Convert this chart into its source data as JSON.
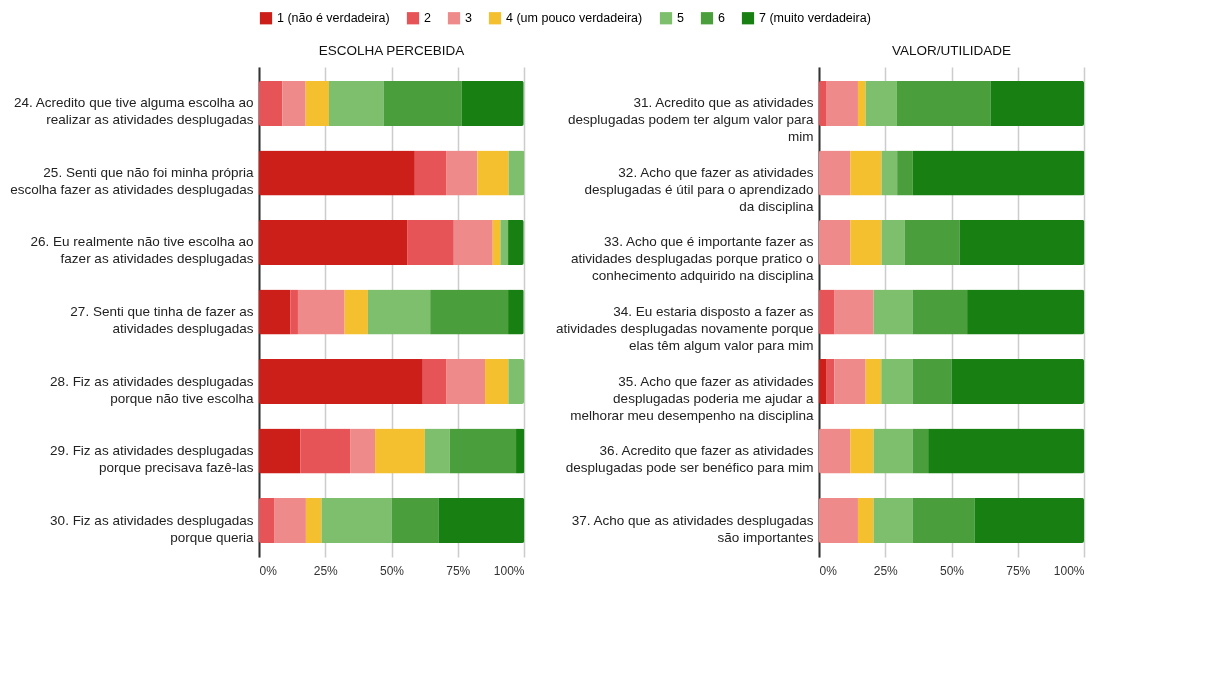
{
  "chart_data": [
    {
      "type": "bar",
      "orientation": "horizontal",
      "stacked": true,
      "title": "ESCOLHA PERCEBIDA",
      "legend": "top",
      "grid": "x",
      "categories": [
        "24. Acredito que tive alguma escolha ao realizar as atividades desplugadas",
        "25. Senti que não foi minha própria escolha fazer as atividades desplugadas",
        "26. Eu realmente não tive escolha ao fazer as atividades desplugadas",
        "27. Senti que tinha de fazer as atividades desplugadas",
        "28. Fiz as atividades desplugadas porque não tive escolha",
        "29. Fiz as atividades desplugadas porque precisava fazê-las",
        "30. Fiz as atividades desplugadas porque queria"
      ],
      "xlim": [
        0,
        100
      ],
      "xticks": [
        {
          "value": 0,
          "label": "0%"
        },
        {
          "value": 25,
          "label": "25%"
        },
        {
          "value": 50,
          "label": "50%"
        },
        {
          "value": 75,
          "label": "75%"
        },
        {
          "value": 100,
          "label": "100%"
        }
      ],
      "series": [
        {
          "name": "1 (não é verdadeira)",
          "color": "#cc1f1a",
          "values": [
            0,
            58.8,
            55.9,
            11.8,
            61.8,
            15.6,
            0
          ]
        },
        {
          "name": "2",
          "color": "#e65457",
          "values": [
            8.8,
            11.8,
            17.6,
            2.9,
            8.8,
            18.8,
            5.9
          ]
        },
        {
          "name": "3",
          "color": "#ef8a8a",
          "values": [
            8.8,
            11.8,
            14.7,
            17.6,
            14.7,
            9.4,
            11.8
          ]
        },
        {
          "name": "4 (um pouco verdadeira)",
          "color": "#f4c02f",
          "values": [
            8.8,
            11.8,
            2.9,
            8.8,
            8.8,
            18.8,
            5.9
          ]
        },
        {
          "name": "5",
          "color": "#7dbf6c",
          "values": [
            20.6,
            5.9,
            2.9,
            23.5,
            5.9,
            9.4,
            26.5
          ]
        },
        {
          "name": "6",
          "color": "#4a9e3c",
          "values": [
            29.4,
            0,
            0,
            29.4,
            0,
            25,
            17.6
          ]
        },
        {
          "name": "7 (muito verdadeira)",
          "color": "#188012",
          "values": [
            23.5,
            0,
            5.9,
            5.9,
            0,
            3.1,
            32.4
          ]
        }
      ]
    },
    {
      "type": "bar",
      "orientation": "horizontal",
      "stacked": true,
      "title": "VALOR/UTILIDADE",
      "legend": "top",
      "grid": "x",
      "categories": [
        "31. Acredito que as atividades desplugadas podem ter algum valor para mim",
        "32. Acho que fazer as atividades desplugadas é útil para o aprendizado da disciplina",
        "33. Acho que é importante fazer as atividades desplugadas porque pratico o conhecimento adquirido na disciplina",
        "34. Eu estaria disposto a fazer as atividades desplugadas novamente porque elas têm algum valor para mim",
        "35. Acho que fazer as atividades desplugadas poderia me ajudar a melhorar meu desempenho na disciplina",
        "36. Acredito que fazer as atividades desplugadas pode ser benéfico para mim",
        "37. Acho que as atividades desplugadas são importantes"
      ],
      "xlim": [
        0,
        100
      ],
      "xticks": [
        {
          "value": 0,
          "label": "0%"
        },
        {
          "value": 25,
          "label": "25%"
        },
        {
          "value": 50,
          "label": "50%"
        },
        {
          "value": 75,
          "label": "75%"
        },
        {
          "value": 100,
          "label": "100%"
        }
      ],
      "series": [
        {
          "name": "1 (não é verdadeira)",
          "color": "#cc1f1a",
          "values": [
            0,
            0,
            0,
            0,
            2.9,
            0,
            0
          ]
        },
        {
          "name": "2",
          "color": "#e65457",
          "values": [
            2.9,
            0,
            0,
            5.9,
            2.9,
            0,
            0
          ]
        },
        {
          "name": "3",
          "color": "#ef8a8a",
          "values": [
            11.8,
            11.8,
            11.8,
            14.7,
            11.8,
            11.8,
            14.7
          ]
        },
        {
          "name": "4 (um pouco verdadeira)",
          "color": "#f4c02f",
          "values": [
            2.9,
            11.8,
            11.8,
            0,
            5.9,
            8.8,
            5.9
          ]
        },
        {
          "name": "5",
          "color": "#7dbf6c",
          "values": [
            11.8,
            5.9,
            8.8,
            14.7,
            11.8,
            14.7,
            14.7
          ]
        },
        {
          "name": "6",
          "color": "#4a9e3c",
          "values": [
            35.3,
            5.9,
            20.6,
            20.6,
            14.7,
            5.9,
            23.5
          ]
        },
        {
          "name": "7 (muito verdadeira)",
          "color": "#188012",
          "values": [
            35.3,
            64.7,
            47.1,
            44.1,
            50,
            58.8,
            41.2
          ]
        }
      ]
    }
  ]
}
